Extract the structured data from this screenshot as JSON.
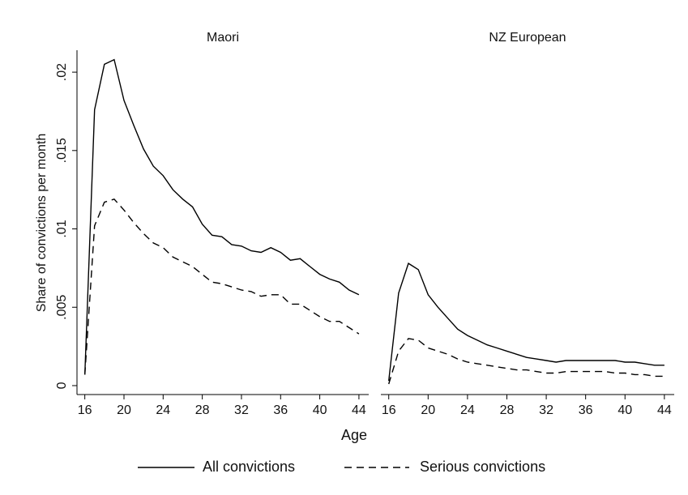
{
  "y_label": "Share of convictions per month",
  "x_label": "Age",
  "chart_data": [
    {
      "type": "line",
      "title": "Maori",
      "x": [
        16,
        17,
        18,
        19,
        20,
        21,
        22,
        23,
        24,
        25,
        26,
        27,
        28,
        29,
        30,
        31,
        32,
        33,
        34,
        35,
        36,
        37,
        38,
        39,
        40,
        41,
        42,
        43,
        44
      ],
      "series": [
        {
          "name": "All convictions",
          "color": "#000000",
          "dash": "solid",
          "values": [
            0.0007,
            0.0176,
            0.0205,
            0.0208,
            0.0182,
            0.0166,
            0.0151,
            0.014,
            0.0134,
            0.0125,
            0.0119,
            0.0114,
            0.0103,
            0.0096,
            0.0095,
            0.009,
            0.0089,
            0.0086,
            0.0085,
            0.0088,
            0.0085,
            0.008,
            0.0081,
            0.0076,
            0.0071,
            0.0068,
            0.0066,
            0.0061,
            0.0058
          ]
        },
        {
          "name": "Serious convictions",
          "color": "#000000",
          "dash": "dashed",
          "values": [
            0.0007,
            0.0102,
            0.0117,
            0.0119,
            0.0112,
            0.0104,
            0.0097,
            0.0091,
            0.0088,
            0.0082,
            0.0079,
            0.0076,
            0.0071,
            0.0066,
            0.0065,
            0.0063,
            0.0061,
            0.006,
            0.0057,
            0.0058,
            0.0058,
            0.0052,
            0.0052,
            0.0048,
            0.0044,
            0.0041,
            0.0041,
            0.0037,
            0.0033
          ]
        }
      ],
      "xlim": [
        15.2,
        45
      ],
      "xticks": [
        16,
        20,
        24,
        28,
        32,
        36,
        40,
        44
      ],
      "ylim": [
        -0.00057,
        0.0214
      ],
      "yticks": [
        0,
        {
          "value": 0.005,
          "label": ".005"
        },
        {
          "value": 0.01,
          "label": ".01"
        },
        {
          "value": 0.015,
          "label": ".015"
        },
        {
          "value": 0.02,
          "label": ".02"
        }
      ]
    },
    {
      "type": "line",
      "title": "NZ European",
      "x": [
        16,
        17,
        18,
        19,
        20,
        21,
        22,
        23,
        24,
        25,
        26,
        27,
        28,
        29,
        30,
        31,
        32,
        33,
        34,
        35,
        36,
        37,
        38,
        39,
        40,
        41,
        42,
        43,
        44
      ],
      "series": [
        {
          "name": "All convictions",
          "color": "#000000",
          "dash": "solid",
          "values": [
            0.0003,
            0.0059,
            0.0078,
            0.0074,
            0.0058,
            0.005,
            0.0043,
            0.0036,
            0.0032,
            0.0029,
            0.0026,
            0.0024,
            0.0022,
            0.002,
            0.0018,
            0.0017,
            0.0016,
            0.0015,
            0.0016,
            0.0016,
            0.0016,
            0.0016,
            0.0016,
            0.0016,
            0.0015,
            0.0015,
            0.0014,
            0.0013,
            0.0013
          ]
        },
        {
          "name": "Serious convictions",
          "color": "#000000",
          "dash": "dashed",
          "values": [
            0.0001,
            0.0022,
            0.003,
            0.0029,
            0.0024,
            0.0022,
            0.002,
            0.0017,
            0.0015,
            0.0014,
            0.0013,
            0.0012,
            0.0011,
            0.001,
            0.001,
            0.0009,
            0.0008,
            0.0008,
            0.0009,
            0.0009,
            0.0009,
            0.0009,
            0.0009,
            0.0008,
            0.0008,
            0.0007,
            0.0007,
            0.0006,
            0.0006
          ]
        }
      ],
      "xlim": [
        15.2,
        45
      ],
      "xticks": [
        16,
        20,
        24,
        28,
        32,
        36,
        40,
        44
      ],
      "ylim": [
        -0.00057,
        0.0214
      ]
    }
  ]
}
